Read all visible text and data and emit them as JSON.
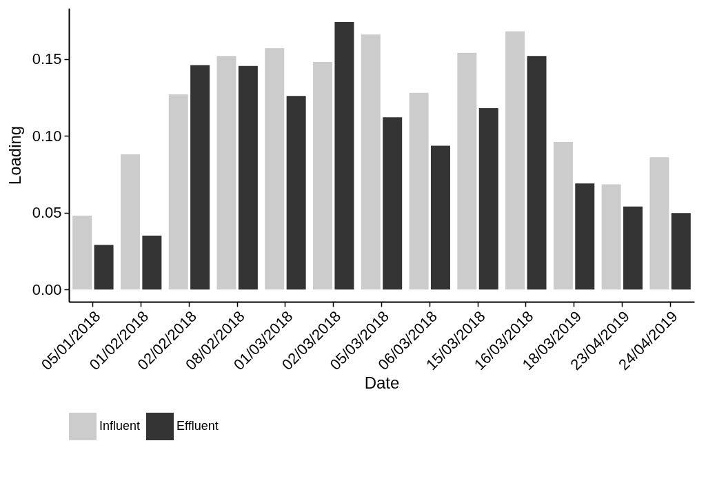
{
  "chart_data": {
    "type": "bar",
    "xlabel": "Date",
    "ylabel": "Loading",
    "categories": [
      "05/01/2018",
      "01/02/2018",
      "02/02/2018",
      "08/02/2018",
      "01/03/2018",
      "02/03/2018",
      "05/03/2018",
      "06/03/2018",
      "15/03/2018",
      "16/03/2018",
      "18/03/2019",
      "23/04/2019",
      "24/04/2019"
    ],
    "series": [
      {
        "name": "Influent",
        "color": "#cccccc",
        "values": [
          0.048,
          0.088,
          0.127,
          0.152,
          0.157,
          0.148,
          0.166,
          0.128,
          0.154,
          0.168,
          0.096,
          0.0685,
          0.086
        ]
      },
      {
        "name": "Effluent",
        "color": "#333333",
        "values": [
          0.029,
          0.035,
          0.146,
          0.1455,
          0.126,
          0.174,
          0.112,
          0.0935,
          0.118,
          0.152,
          0.069,
          0.054,
          0.0497
        ]
      }
    ],
    "ylim": [
      -0.008,
      0.183
    ],
    "yticks": [
      {
        "value": 0,
        "label": "0.00"
      },
      {
        "value": 0.05,
        "label": "0.05"
      },
      {
        "value": 0.1,
        "label": "0.10"
      },
      {
        "value": 0.15,
        "label": "0.15"
      }
    ],
    "grid": false,
    "legend": "bottom"
  }
}
